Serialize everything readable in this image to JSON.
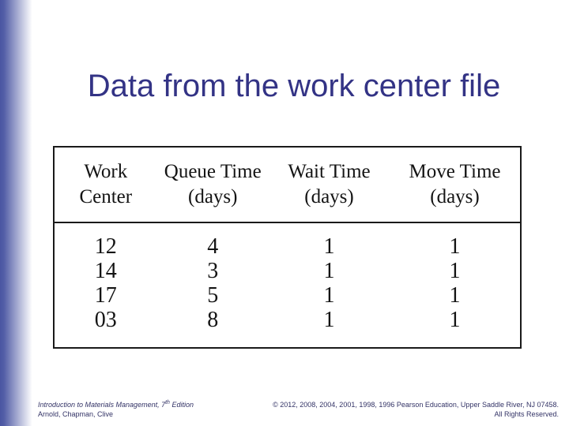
{
  "slide": {
    "title": "Data from the work center file"
  },
  "table": {
    "columns": [
      {
        "line1": "Work",
        "line2": "Center"
      },
      {
        "line1": "Queue Time",
        "line2": "(days)"
      },
      {
        "line1": "Wait Time",
        "line2": "(days)"
      },
      {
        "line1": "Move Time",
        "line2": "(days)"
      }
    ],
    "rows": [
      [
        "12",
        "4",
        "1",
        "1"
      ],
      [
        "14",
        "3",
        "1",
        "1"
      ],
      [
        "17",
        "5",
        "1",
        "1"
      ],
      [
        "03",
        "8",
        "1",
        "1"
      ]
    ]
  },
  "footer": {
    "left": {
      "line1_pre": "Introduction to Materials Management, 7",
      "line1_sup": "th",
      "line1_post": " Edition",
      "line2": "Arnold, Chapman, Clive"
    },
    "right": {
      "line1": "© 2012, 2008, 2004, 2001, 1998, 1996 Pearson Education, Upper Saddle River, NJ 07458.",
      "line2": "All Rights Reserved."
    }
  },
  "colors": {
    "title_text": "#333385",
    "footer_text": "#333366",
    "table_border": "#1a1a1a",
    "sidebar_gradient_start": "#4a55a2"
  }
}
